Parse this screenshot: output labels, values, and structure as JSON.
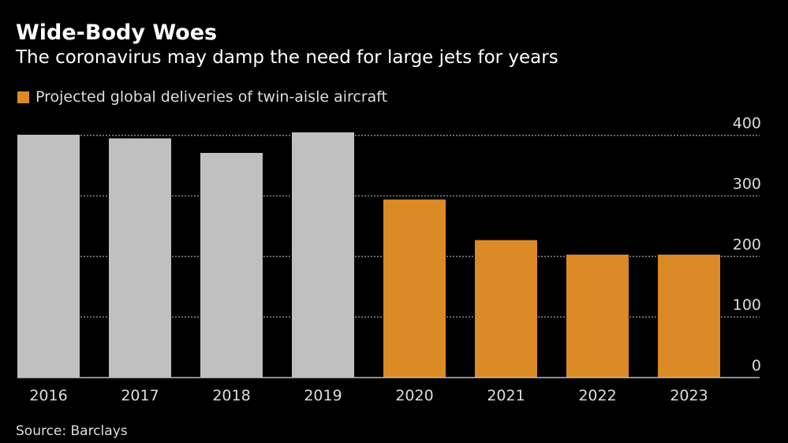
{
  "chart_data": {
    "type": "bar",
    "title": "Wide-Body Woes",
    "subtitle": "The coronavirus may damp the need for large jets for years",
    "legend": [
      {
        "label": "Projected global deliveries of twin-aisle aircraft",
        "color": "#db8a26"
      }
    ],
    "legend_placement": "top-left",
    "categories": [
      "2016",
      "2017",
      "2018",
      "2019",
      "2020",
      "2021",
      "2022",
      "2023"
    ],
    "values": [
      401,
      395,
      371,
      405,
      294,
      227,
      203,
      203
    ],
    "bar_colors": [
      "#c0c0c0",
      "#c0c0c0",
      "#c0c0c0",
      "#c0c0c0",
      "#db8a26",
      "#db8a26",
      "#db8a26",
      "#db8a26"
    ],
    "ylim": [
      0,
      400
    ],
    "yticks": [
      0,
      100,
      200,
      300,
      400
    ],
    "y_axis_side": "right",
    "grid": true,
    "xlabel": "",
    "ylabel": "",
    "source": "Source: Barclays"
  }
}
